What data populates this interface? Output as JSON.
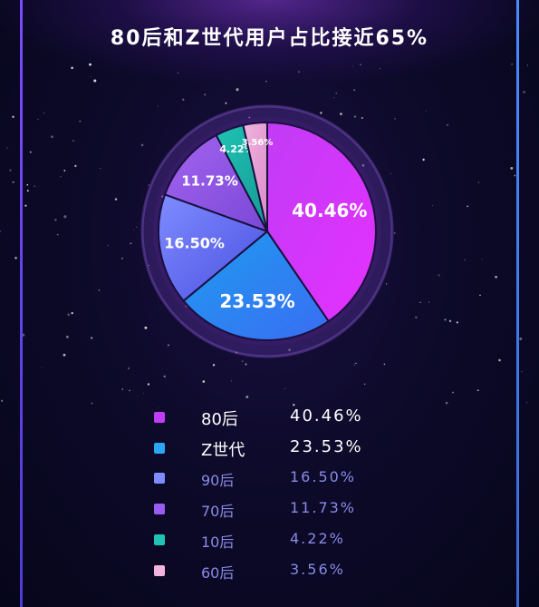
{
  "title": "80后和Z世代用户占比接近65%",
  "chart_data": {
    "type": "pie",
    "title": "80后和Z世代用户占比接近65%",
    "slices": [
      {
        "name": "80后",
        "value": 40.46,
        "label": "40.46%",
        "color_start": "#c13cf5",
        "color_end": "#e530ff"
      },
      {
        "name": "Z世代",
        "value": 23.53,
        "label": "23.53%",
        "color_start": "#1e9cf0",
        "color_end": "#3a6df2"
      },
      {
        "name": "90后",
        "value": 16.5,
        "label": "16.50%",
        "color_start": "#7f8cff",
        "color_end": "#4a4fe0"
      },
      {
        "name": "70后",
        "value": 11.73,
        "label": "11.73%",
        "color_start": "#a364f0",
        "color_end": "#7a48d6"
      },
      {
        "name": "10后",
        "value": 4.22,
        "label": "4.22%",
        "color_start": "#20c3b5",
        "color_end": "#159a95"
      },
      {
        "name": "60后",
        "value": 3.56,
        "label": "3.56%",
        "color_start": "#f2b4de",
        "color_end": "#d98ac8"
      }
    ],
    "legend_placement": "bottom"
  },
  "legend": [
    {
      "label": "80后",
      "value": "40.46%",
      "swatch": "#c13cf5",
      "text_color": "#ffffff",
      "size": 18
    },
    {
      "label": "Z世代",
      "value": "23.53%",
      "swatch": "#2aa6f5",
      "text_color": "#ffffff",
      "size": 18
    },
    {
      "label": "90后",
      "value": "16.50%",
      "swatch": "#7f8cff",
      "text_color": "#8a8ae6",
      "size": 16
    },
    {
      "label": "70后",
      "value": "11.73%",
      "swatch": "#9a5cf0",
      "text_color": "#8a8ae6",
      "size": 16
    },
    {
      "label": "10后",
      "value": "4.22%",
      "swatch": "#20c3b5",
      "text_color": "#8a8ae6",
      "size": 16
    },
    {
      "label": "60后",
      "value": "3.56%",
      "swatch": "#f2b4de",
      "text_color": "#8a8ae6",
      "size": 16
    }
  ]
}
